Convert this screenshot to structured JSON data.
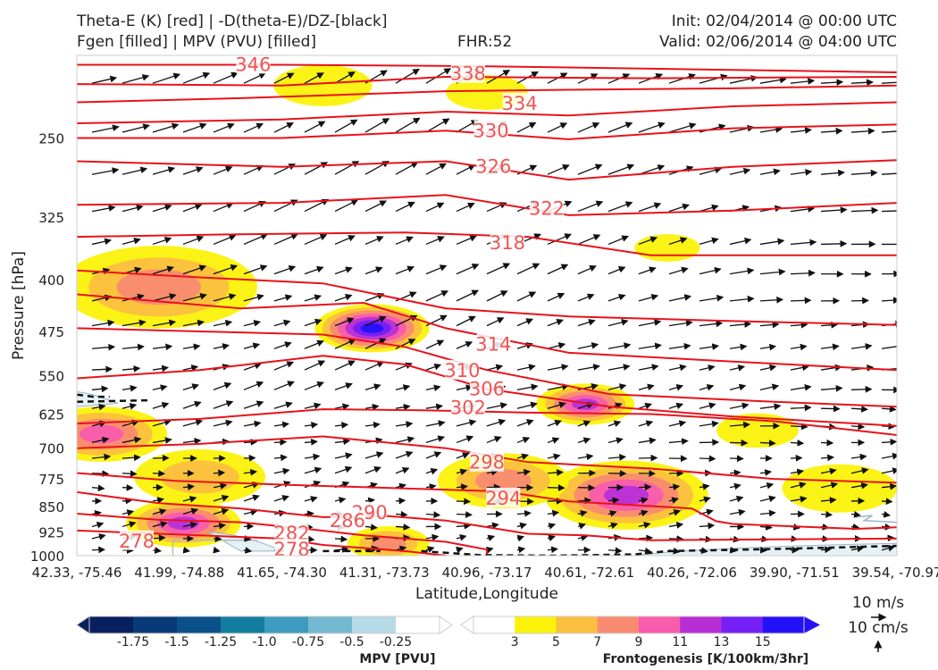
{
  "header": {
    "title_left_1": "Theta-E (K) [red] | -D(theta-E)/DZ-[black]",
    "title_left_2": "Fgen [filled] | MPV (PVU) [filled]",
    "fhr": "FHR:52",
    "init": "Init: 02/04/2014 @ 00:00 UTC",
    "valid": "Valid: 02/06/2014 @ 04:00 UTC"
  },
  "chart_data": {
    "type": "cross-section",
    "xlabel": "Latitude,Longitude",
    "ylabel": "Pressure [hPa]",
    "x_ticks": [
      "42.33, -75.46",
      "41.99, -74.88",
      "41.65, -74.30",
      "41.31, -73.73",
      "40.96, -73.17",
      "40.61, -72.61",
      "40.26, -72.06",
      "39.90, -71.51",
      "39.54, -70.97"
    ],
    "y_ticks": [
      250,
      325,
      400,
      475,
      550,
      625,
      700,
      775,
      850,
      925,
      1000
    ],
    "ylim": [
      1000,
      190
    ],
    "y_scale": "log",
    "theta_e_labels": [
      {
        "value": "346",
        "x_frac": 0.215,
        "p": 196
      },
      {
        "value": "338",
        "x_frac": 0.477,
        "p": 202
      },
      {
        "value": "334",
        "x_frac": 0.54,
        "p": 223
      },
      {
        "value": "330",
        "x_frac": 0.505,
        "p": 244
      },
      {
        "value": "326",
        "x_frac": 0.508,
        "p": 275
      },
      {
        "value": "322",
        "x_frac": 0.573,
        "p": 316
      },
      {
        "value": "318",
        "x_frac": 0.525,
        "p": 354
      },
      {
        "value": "314",
        "x_frac": 0.508,
        "p": 496
      },
      {
        "value": "310",
        "x_frac": 0.47,
        "p": 541
      },
      {
        "value": "306",
        "x_frac": 0.5,
        "p": 575
      },
      {
        "value": "302",
        "x_frac": 0.477,
        "p": 612
      },
      {
        "value": "298",
        "x_frac": 0.5,
        "p": 734
      },
      {
        "value": "294",
        "x_frac": 0.52,
        "p": 827
      },
      {
        "value": "290",
        "x_frac": 0.357,
        "p": 867
      },
      {
        "value": "286",
        "x_frac": 0.33,
        "p": 891
      },
      {
        "value": "282",
        "x_frac": 0.262,
        "p": 929
      },
      {
        "value": "278",
        "x_frac": 0.073,
        "p": 953
      },
      {
        "value": "278",
        "x_frac": 0.262,
        "p": 980
      }
    ],
    "theta_e_lines": [
      [
        [
          0.0,
          196
        ],
        [
          0.25,
          196
        ],
        [
          0.5,
          197
        ],
        [
          0.75,
          199
        ],
        [
          1.0,
          201
        ]
      ],
      [
        [
          0.0,
          209
        ],
        [
          0.25,
          210
        ],
        [
          0.45,
          204
        ],
        [
          0.7,
          205
        ],
        [
          1.0,
          204
        ]
      ],
      [
        [
          0.0,
          222
        ],
        [
          0.2,
          219
        ],
        [
          0.45,
          214
        ],
        [
          0.6,
          213
        ],
        [
          0.8,
          212
        ],
        [
          1.0,
          210
        ]
      ],
      [
        [
          0.0,
          238
        ],
        [
          0.25,
          235
        ],
        [
          0.45,
          229
        ],
        [
          0.6,
          232
        ],
        [
          0.8,
          225
        ],
        [
          1.0,
          222
        ]
      ],
      [
        [
          0.0,
          250
        ],
        [
          0.25,
          250
        ],
        [
          0.45,
          244
        ],
        [
          0.6,
          251
        ],
        [
          0.8,
          242
        ],
        [
          1.0,
          239
        ]
      ],
      [
        [
          0.0,
          270
        ],
        [
          0.25,
          275
        ],
        [
          0.45,
          270
        ],
        [
          0.6,
          287
        ],
        [
          0.8,
          275
        ],
        [
          1.0,
          269
        ]
      ],
      [
        [
          0.0,
          312
        ],
        [
          0.25,
          310
        ],
        [
          0.45,
          302
        ],
        [
          0.6,
          323
        ],
        [
          0.8,
          318
        ],
        [
          1.0,
          310
        ]
      ],
      [
        [
          0.0,
          347
        ],
        [
          0.2,
          344
        ],
        [
          0.4,
          342
        ],
        [
          0.55,
          347
        ],
        [
          0.7,
          369
        ],
        [
          1.0,
          369
        ]
      ],
      [
        [
          0.0,
          388
        ],
        [
          0.15,
          397
        ],
        [
          0.3,
          405
        ],
        [
          0.45,
          440
        ],
        [
          0.6,
          452
        ],
        [
          0.8,
          459
        ],
        [
          1.0,
          465
        ]
      ],
      [
        [
          0.0,
          420
        ],
        [
          0.1,
          430
        ],
        [
          0.2,
          440
        ],
        [
          0.35,
          432
        ],
        [
          0.45,
          470
        ],
        [
          0.6,
          510
        ],
        [
          0.8,
          525
        ],
        [
          1.0,
          540
        ]
      ],
      [
        [
          0.0,
          470
        ],
        [
          0.15,
          475
        ],
        [
          0.3,
          480
        ],
        [
          0.4,
          500
        ],
        [
          0.5,
          540
        ],
        [
          0.65,
          585
        ],
        [
          0.85,
          600
        ],
        [
          1.0,
          610
        ]
      ],
      [
        [
          0.0,
          555
        ],
        [
          0.15,
          540
        ],
        [
          0.3,
          515
        ],
        [
          0.4,
          530
        ],
        [
          0.5,
          575
        ],
        [
          0.65,
          610
        ],
        [
          0.8,
          630
        ],
        [
          1.0,
          650
        ]
      ],
      [
        [
          0.0,
          645
        ],
        [
          0.15,
          635
        ],
        [
          0.3,
          615
        ],
        [
          0.42,
          617
        ],
        [
          0.55,
          622
        ],
        [
          0.7,
          625
        ],
        [
          0.85,
          640
        ],
        [
          1.0,
          670
        ]
      ],
      [
        [
          0.0,
          700
        ],
        [
          0.15,
          690
        ],
        [
          0.3,
          673
        ],
        [
          0.45,
          700
        ],
        [
          0.55,
          733
        ],
        [
          0.7,
          749
        ],
        [
          0.85,
          775
        ],
        [
          1.0,
          785
        ]
      ],
      [
        [
          0.0,
          760
        ],
        [
          0.12,
          780
        ],
        [
          0.25,
          790
        ],
        [
          0.4,
          800
        ],
        [
          0.52,
          808
        ],
        [
          0.6,
          835
        ],
        [
          0.75,
          855
        ],
        [
          0.78,
          892
        ],
        [
          0.8,
          900
        ],
        [
          0.95,
          915
        ],
        [
          1.0,
          910
        ]
      ],
      [
        [
          0.0,
          810
        ],
        [
          0.1,
          840
        ],
        [
          0.2,
          855
        ],
        [
          0.3,
          880
        ],
        [
          0.38,
          877
        ],
        [
          0.45,
          890
        ],
        [
          0.55,
          930
        ],
        [
          0.62,
          935
        ],
        [
          0.7,
          950
        ],
        [
          1.0,
          945
        ]
      ],
      [
        [
          0.0,
          870
        ],
        [
          0.1,
          888
        ],
        [
          0.2,
          895
        ],
        [
          0.28,
          915
        ],
        [
          0.35,
          935
        ],
        [
          0.45,
          955
        ],
        [
          0.5,
          980
        ],
        [
          0.5,
          1000
        ]
      ],
      [
        [
          0.0,
          920
        ],
        [
          0.15,
          935
        ],
        [
          0.25,
          945
        ],
        [
          0.3,
          965
        ],
        [
          0.4,
          985
        ],
        [
          0.45,
          1000
        ]
      ]
    ],
    "fgen_colorbar": {
      "label": "Frontogenesis [K/100km/3hr]",
      "ticks": [
        "3",
        "5",
        "7",
        "9",
        "11",
        "13",
        "15"
      ],
      "colors": [
        "#ffffff",
        "#fbf20a",
        "#fbbf3f",
        "#f98b71",
        "#f85cad",
        "#b82fd6",
        "#7420f6",
        "#2511f9"
      ]
    },
    "mpv_colorbar": {
      "label": "MPV [PVU]",
      "ticks": [
        "-1.75",
        "-1.5",
        "-1.25",
        "-1.0",
        "-0.75",
        "-0.5",
        "-0.25"
      ],
      "colors": [
        "#08205f",
        "#0a3a78",
        "#0b5189",
        "#137d9f",
        "#3c9bbf",
        "#74b9d2",
        "#b6dbe7",
        "#ffffff"
      ]
    },
    "fgen_blobs": [
      {
        "x_frac": 0.1,
        "p": 410,
        "rx": 0.12,
        "level": 8
      },
      {
        "x_frac": 0.36,
        "p": 470,
        "rx": 0.07,
        "level": 16
      },
      {
        "x_frac": 0.62,
        "p": 605,
        "rx": 0.06,
        "level": 12
      },
      {
        "x_frac": 0.03,
        "p": 668,
        "rx": 0.08,
        "level": 9
      },
      {
        "x_frac": 0.67,
        "p": 818,
        "rx": 0.1,
        "level": 12
      },
      {
        "x_frac": 0.13,
        "p": 898,
        "rx": 0.07,
        "level": 11
      },
      {
        "x_frac": 0.52,
        "p": 780,
        "rx": 0.08,
        "level": 7
      },
      {
        "x_frac": 0.15,
        "p": 770,
        "rx": 0.08,
        "level": 6
      },
      {
        "x_frac": 0.3,
        "p": 210,
        "rx": 0.06,
        "level": 4
      },
      {
        "x_frac": 0.5,
        "p": 215,
        "rx": 0.05,
        "level": 4
      },
      {
        "x_frac": 0.72,
        "p": 360,
        "rx": 0.04,
        "level": 3
      },
      {
        "x_frac": 0.38,
        "p": 960,
        "rx": 0.05,
        "level": 7
      },
      {
        "x_frac": 0.83,
        "p": 660,
        "rx": 0.05,
        "level": 4
      },
      {
        "x_frac": 0.93,
        "p": 800,
        "rx": 0.07,
        "level": 4
      }
    ],
    "reference_vector": {
      "label_1": "10 m/s",
      "label_2": "10 cm/s"
    }
  }
}
